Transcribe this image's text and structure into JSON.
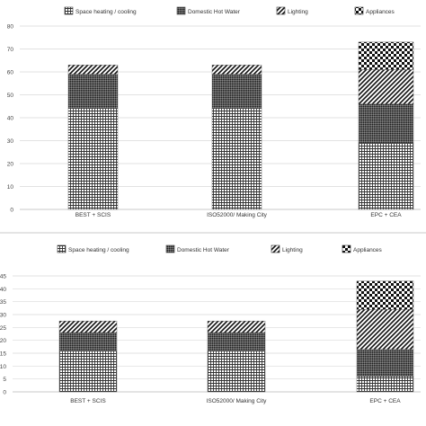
{
  "chart_data": [
    {
      "type": "bar",
      "stacked": true,
      "categories": [
        "BEST + SCIS",
        "ISO52000/ Making City",
        "EPC + CEA"
      ],
      "series": [
        {
          "name": "Space heating / cooling",
          "values": [
            44,
            44,
            29
          ]
        },
        {
          "name": "Domestic Hot Water",
          "values": [
            15,
            15,
            17
          ]
        },
        {
          "name": "Lighting",
          "values": [
            4,
            4,
            15
          ]
        },
        {
          "name": "Appliances",
          "values": [
            0,
            0,
            12
          ]
        }
      ],
      "ylim": [
        0,
        80
      ],
      "yticks": [
        0,
        10,
        20,
        30,
        40,
        50,
        60,
        70,
        80
      ],
      "grid": true,
      "legend": "top"
    },
    {
      "type": "bar",
      "stacked": true,
      "categories": [
        "BEST + SCIS",
        "ISO52000/ Making City",
        "EPC + CEA"
      ],
      "series": [
        {
          "name": "Space heating / cooling",
          "values": [
            16,
            16,
            6
          ]
        },
        {
          "name": "Domestic Hot Water",
          "values": [
            7,
            7,
            10.5
          ]
        },
        {
          "name": "Lighting",
          "values": [
            4.5,
            4.5,
            15.5
          ]
        },
        {
          "name": "Appliances",
          "values": [
            0,
            0,
            11
          ]
        }
      ],
      "ylim": [
        0,
        45
      ],
      "yticks": [
        0,
        5,
        10,
        15,
        20,
        25,
        30,
        35,
        40,
        45
      ],
      "grid": true,
      "legend": "top"
    }
  ]
}
